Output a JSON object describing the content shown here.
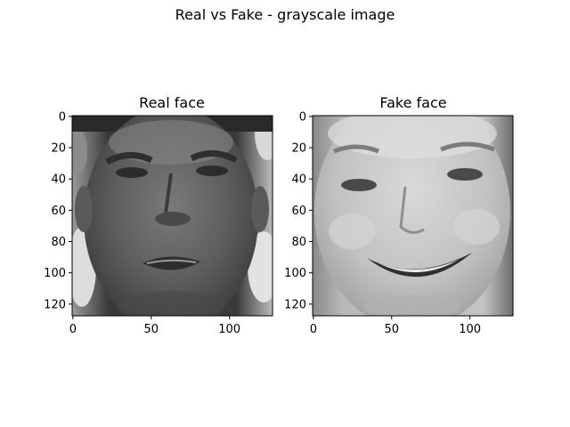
{
  "figure": {
    "suptitle": "Real vs Fake - grayscale image"
  },
  "panels": [
    {
      "title": "Real face",
      "image_desc": "grayscale 128x128 photo",
      "xticks": [
        "0",
        "50",
        "100"
      ],
      "yticks": [
        "0",
        "20",
        "40",
        "60",
        "80",
        "100",
        "120"
      ]
    },
    {
      "title": "Fake face",
      "image_desc": "grayscale 128x128 photo",
      "xticks": [
        "0",
        "50",
        "100"
      ],
      "yticks": [
        "0",
        "20",
        "40",
        "60",
        "80",
        "100",
        "120"
      ]
    }
  ],
  "colors": {
    "background": "#ffffff",
    "axes": "#000000"
  }
}
